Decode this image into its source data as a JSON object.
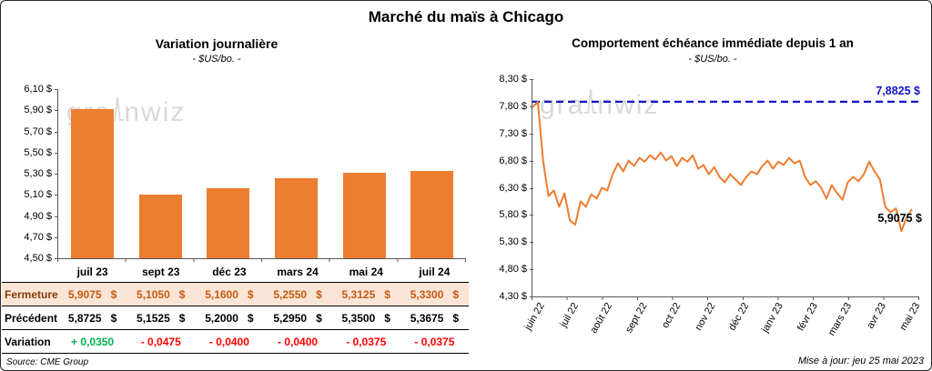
{
  "page_title": "Marché du maïs à Chicago",
  "watermark": {
    "part1": "gra",
    "part2": "nwiz"
  },
  "source": "Source: CME Group",
  "footer": {
    "updated": "Mise à jour: jeu 25 mai 2023"
  },
  "colors": {
    "positive": "#00B050",
    "negative": "#FF0000",
    "fermeture_bg": "#FBE5D6",
    "fermeture_text": "#C55A11",
    "accent_orange": "#ED7D31",
    "ref_blue": "#1414CC",
    "watermark": "#D9D9D9"
  },
  "table": {
    "header": [
      "juil 23",
      "sept 23",
      "déc 23",
      "mars 24",
      "mai 24",
      "juil 24"
    ],
    "rows": [
      {
        "kind": "fermeture",
        "label": "Fermeture",
        "unit": "$",
        "values": [
          "5,9075",
          "5,1050",
          "5,1600",
          "5,2550",
          "5,3125",
          "5,3300"
        ]
      },
      {
        "kind": "precedent",
        "label": "Précédent",
        "unit": "$",
        "values": [
          "5,8725",
          "5,1525",
          "5,2000",
          "5,2950",
          "5,3500",
          "5,3675"
        ]
      },
      {
        "kind": "variation",
        "label": "Variation",
        "unit": "",
        "values": [
          "+ 0,0350",
          "- 0,0475",
          "- 0,0400",
          "- 0,0400",
          "- 0,0375",
          "- 0,0375"
        ]
      }
    ]
  },
  "chart_data": [
    {
      "type": "bar",
      "title": "Variation journalière",
      "subtitle": "- $US/bo. -",
      "categories": [
        "juil 23",
        "sept 23",
        "déc 23",
        "mars 24",
        "mai 24",
        "juil 24"
      ],
      "values": [
        5.9075,
        5.105,
        5.16,
        5.255,
        5.3125,
        5.33
      ],
      "ylim": [
        4.5,
        6.1
      ],
      "y_ticks": [
        "6,10 $",
        "5,90 $",
        "5,70 $",
        "5,50 $",
        "5,30 $",
        "5,10 $",
        "4,90 $",
        "4,70 $",
        "4,50 $"
      ],
      "bar_color": "#ED7D31",
      "grid": false,
      "legend": false
    },
    {
      "type": "line",
      "title": "Comportement échéance immédiate depuis 1 an",
      "subtitle": "- $US/bo. -",
      "x_labels": [
        "juin 22",
        "juil 22",
        "août 22",
        "sept 22",
        "oct 22",
        "nov 22",
        "déc 22",
        "janv 23",
        "févr 23",
        "mars 23",
        "avr 23",
        "mai 23"
      ],
      "ylim": [
        4.3,
        8.3
      ],
      "y_ticks": [
        "8,30 $",
        "7,80 $",
        "7,30 $",
        "6,80 $",
        "6,30 $",
        "5,80 $",
        "5,30 $",
        "4,80 $",
        "4,30 $"
      ],
      "line_color": "#ED7D31",
      "ref_line": {
        "value": 7.8825,
        "label": "7,8825 $",
        "color": "#1414CC",
        "style": "dashed"
      },
      "last_point_label": "5,9075 $",
      "series": [
        7.78,
        7.88,
        6.8,
        6.15,
        6.25,
        5.95,
        6.2,
        5.7,
        5.62,
        6.05,
        5.95,
        6.18,
        6.1,
        6.3,
        6.25,
        6.55,
        6.75,
        6.6,
        6.8,
        6.7,
        6.85,
        6.78,
        6.9,
        6.82,
        6.95,
        6.8,
        6.88,
        6.7,
        6.85,
        6.78,
        6.9,
        6.65,
        6.72,
        6.55,
        6.68,
        6.5,
        6.4,
        6.55,
        6.45,
        6.35,
        6.5,
        6.6,
        6.55,
        6.7,
        6.8,
        6.65,
        6.78,
        6.72,
        6.85,
        6.75,
        6.8,
        6.5,
        6.35,
        6.42,
        6.3,
        6.1,
        6.35,
        6.2,
        6.08,
        6.4,
        6.5,
        6.42,
        6.55,
        6.78,
        6.6,
        6.45,
        5.95,
        5.85,
        5.92,
        5.5,
        5.75,
        5.9075
      ],
      "grid": false,
      "legend": false
    }
  ]
}
